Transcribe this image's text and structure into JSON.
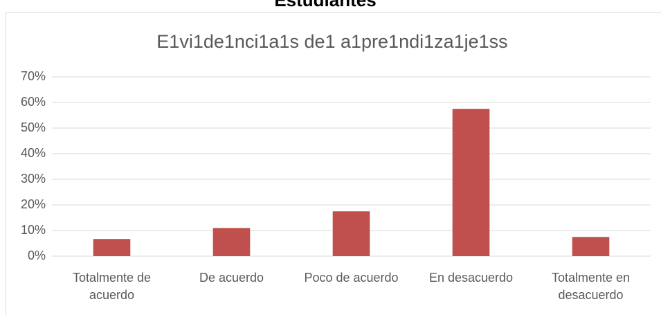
{
  "chart_data": {
    "type": "bar",
    "header": "Estudiantes",
    "title": "E1vi1de1nci1a1s de1 a1pre1ndi1za1je1ss",
    "categories": [
      "Totalmente de acuerdo",
      "De acuerdo",
      "Poco de acuerdo",
      "En desacuerdo",
      "Totalmente en desacuerdo"
    ],
    "values": [
      6.7,
      11,
      17.5,
      57.5,
      7.5
    ],
    "color": "#c0504d",
    "ylim": [
      0,
      70
    ],
    "yticks": [
      {
        "value": 0,
        "label": "0%"
      },
      {
        "value": 10,
        "label": "10%"
      },
      {
        "value": 20,
        "label": "20%"
      },
      {
        "value": 30,
        "label": "30%"
      },
      {
        "value": 40,
        "label": "40%"
      },
      {
        "value": 50,
        "label": "50%"
      },
      {
        "value": 60,
        "label": "60%"
      },
      {
        "value": 70,
        "label": "70%"
      }
    ],
    "grid": true
  }
}
